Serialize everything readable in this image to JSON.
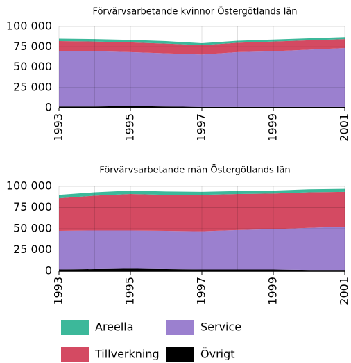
{
  "chart_data": [
    {
      "type": "stacked_area",
      "title": "Förvärvsarbetande kvinnor Östergötlands län",
      "x": [
        1993,
        1994,
        1995,
        1996,
        1997,
        1998,
        1999,
        2000,
        2001
      ],
      "xlim": [
        1993,
        2001
      ],
      "xticks": [
        1993,
        1995,
        1997,
        1999,
        2001
      ],
      "ylim": [
        0,
        100000
      ],
      "yticks": [
        0,
        {
          "value": 25000,
          "label": "25 000"
        },
        {
          "value": 50000,
          "label": "50 000"
        },
        {
          "value": 75000,
          "label": "75 000"
        },
        {
          "value": 100000,
          "label": "100 000"
        }
      ],
      "grid": true,
      "series": [
        {
          "name": "Övrigt",
          "color": "#000000",
          "values": [
            1500,
            1500,
            2000,
            1500,
            1000,
            1000,
            1000,
            1000,
            1000
          ]
        },
        {
          "name": "Service",
          "color": "#9b80cf",
          "values": [
            68500,
            68000,
            66500,
            65500,
            64500,
            67500,
            68500,
            70500,
            72500
          ]
        },
        {
          "name": "Tillverkning",
          "color": "#d44a62",
          "values": [
            12000,
            12000,
            12000,
            12000,
            11500,
            11500,
            12000,
            11500,
            11000
          ]
        },
        {
          "name": "Areella",
          "color": "#3cb89a",
          "values": [
            3000,
            3000,
            3000,
            3000,
            2500,
            2500,
            2500,
            2500,
            2500
          ]
        }
      ]
    },
    {
      "type": "stacked_area",
      "title": "Förvärvsarbetande män Östergötlands län",
      "x": [
        1993,
        1994,
        1995,
        1996,
        1997,
        1998,
        1999,
        2000,
        2001
      ],
      "xlim": [
        1993,
        2001
      ],
      "xticks": [
        1993,
        1995,
        1997,
        1999,
        2001
      ],
      "ylim": [
        0,
        100000
      ],
      "yticks": [
        0,
        {
          "value": 25000,
          "label": "25 000"
        },
        {
          "value": 50000,
          "label": "50 000"
        },
        {
          "value": 75000,
          "label": "75 000"
        },
        {
          "value": 100000,
          "label": "100 000"
        }
      ],
      "grid": true,
      "series": [
        {
          "name": "Övrigt",
          "color": "#000000",
          "values": [
            2000,
            2500,
            3000,
            2500,
            2000,
            2000,
            2000,
            1500,
            1500
          ]
        },
        {
          "name": "Service",
          "color": "#9b80cf",
          "values": [
            45500,
            45500,
            45000,
            45000,
            45000,
            46500,
            47500,
            49500,
            51000
          ]
        },
        {
          "name": "Tillverkning",
          "color": "#d44a62",
          "values": [
            38500,
            41000,
            43000,
            42500,
            43000,
            42500,
            42000,
            42000,
            41000
          ]
        },
        {
          "name": "Areella",
          "color": "#3cb89a",
          "values": [
            4000,
            4000,
            4000,
            4000,
            3500,
            3500,
            3500,
            3500,
            3500
          ]
        }
      ]
    }
  ]
}
